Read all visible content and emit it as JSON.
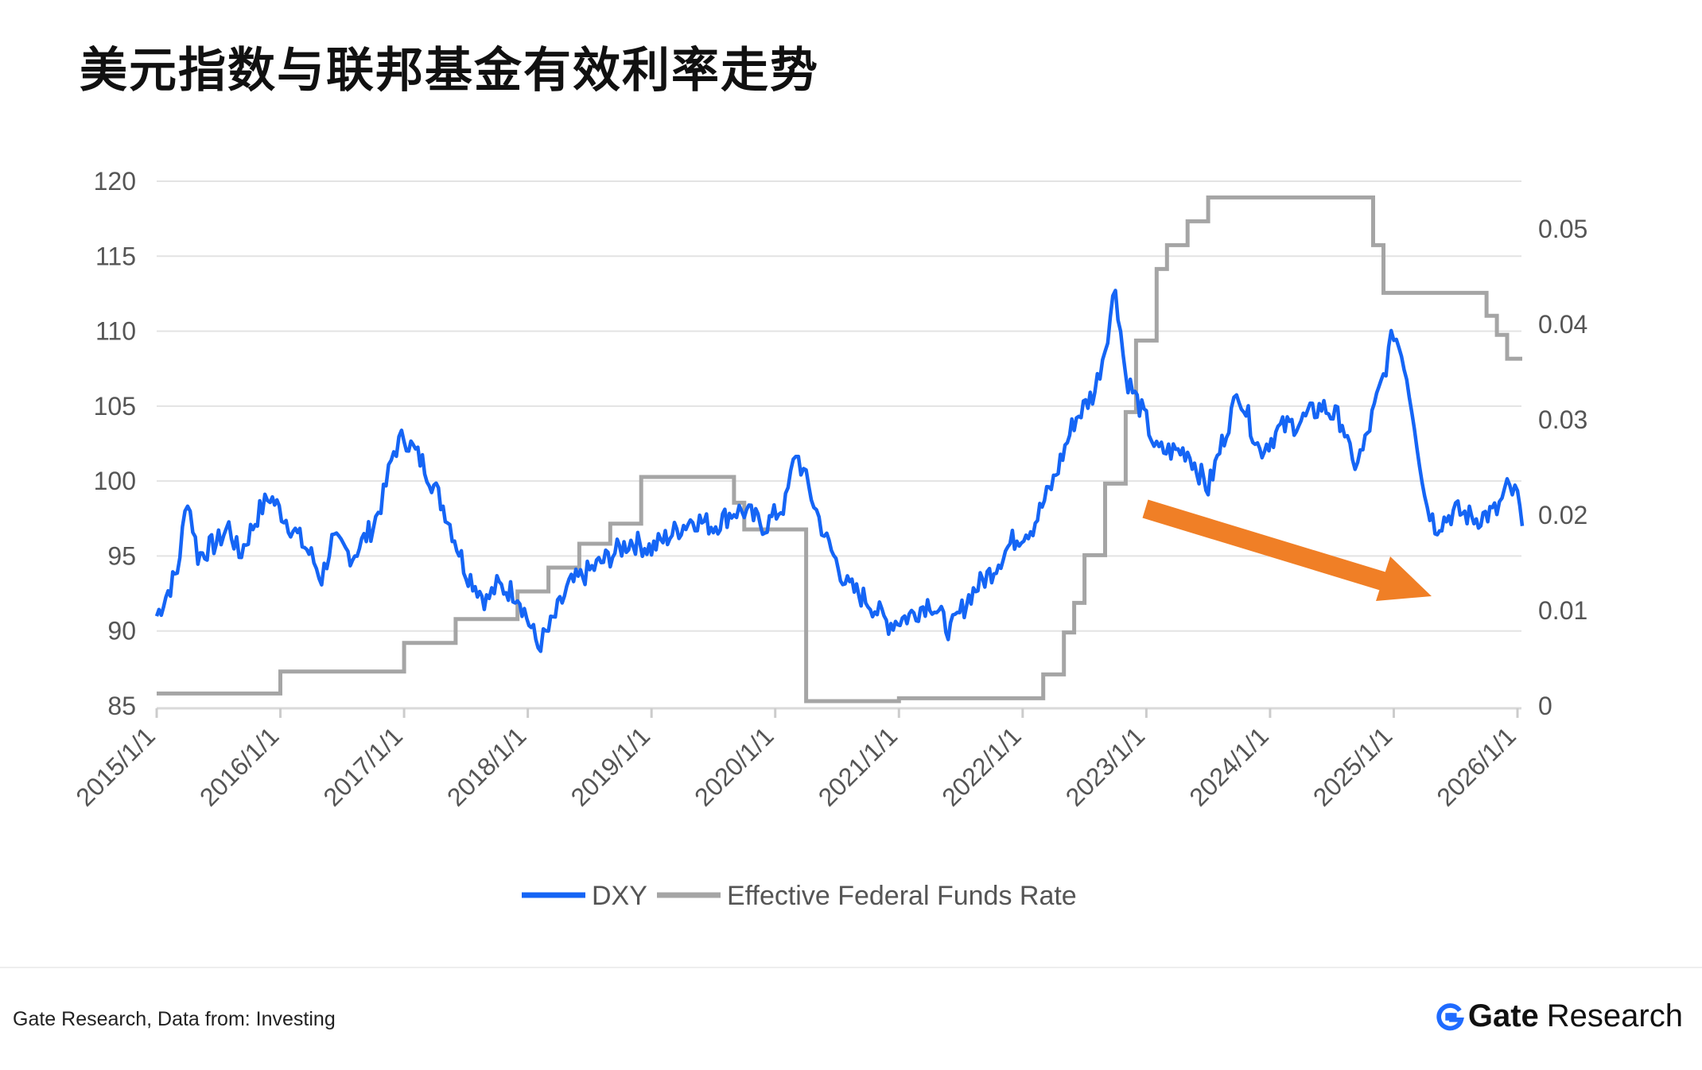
{
  "page": {
    "title": "美元指数与联邦基金有效利率走势",
    "source": "Gate Research, Data from: Investing",
    "brand_name": "Gate",
    "brand_sub": "Research"
  },
  "colors": {
    "dxy": "#1565f5",
    "fed": "#a5a5a5",
    "arrow": "#f07f26",
    "grid": "#e3e3e3",
    "axis_text": "#555555"
  },
  "chart_data": {
    "type": "line",
    "title": "美元指数与联邦基金有效利率走势",
    "xlabel": "",
    "ylabel": "",
    "x_ticks": [
      "2015/1/1",
      "2016/1/1",
      "2017/1/1",
      "2018/1/1",
      "2019/1/1",
      "2020/1/1",
      "2021/1/1",
      "2022/1/1",
      "2023/1/1",
      "2024/1/1",
      "2025/1/1",
      "2026/1/1"
    ],
    "y_left": {
      "ticks": [
        "120",
        "115",
        "110",
        "105",
        "100",
        "95",
        "90",
        "85"
      ],
      "min": 85,
      "max": 120
    },
    "y_right": {
      "ticks": [
        "0.05",
        "0.04",
        "0.03",
        "0.02",
        "0.01",
        "0"
      ],
      "min": 0,
      "max": 0.055
    },
    "grid": true,
    "legend_position": "bottom-center",
    "series": [
      {
        "name": "DXY",
        "axis": "left",
        "x": [
          "2015/1/1",
          "2015/3/1",
          "2015/4/1",
          "2015/5/1",
          "2015/7/1",
          "2015/8/1",
          "2015/9/1",
          "2015/11/1",
          "2015/12/1",
          "2016/2/1",
          "2016/4/1",
          "2016/5/1",
          "2016/6/1",
          "2016/8/1",
          "2016/10/1",
          "2016/11/1",
          "2016/12/1",
          "2017/1/1",
          "2017/3/1",
          "2017/5/1",
          "2017/7/1",
          "2017/9/1",
          "2017/10/1",
          "2017/12/1",
          "2018/2/1",
          "2018/3/1",
          "2018/5/1",
          "2018/7/1",
          "2018/9/1",
          "2018/11/1",
          "2019/1/1",
          "2019/3/1",
          "2019/5/1",
          "2019/7/1",
          "2019/9/1",
          "2019/10/1",
          "2019/12/1",
          "2020/2/1",
          "2020/3/1",
          "2020/4/1",
          "2020/5/1",
          "2020/6/1",
          "2020/8/1",
          "2020/10/1",
          "2020/12/1",
          "2021/2/1",
          "2021/4/1",
          "2021/6/1",
          "2021/8/1",
          "2021/10/1",
          "2021/12/1",
          "2022/2/1",
          "2022/4/1",
          "2022/6/1",
          "2022/8/1",
          "2022/9/1",
          "2022/10/1",
          "2022/11/1",
          "2023/1/1",
          "2023/2/1",
          "2023/5/1",
          "2023/7/1",
          "2023/9/1",
          "2023/10/1",
          "2023/12/1",
          "2024/2/1",
          "2024/4/1",
          "2024/6/1",
          "2024/8/1",
          "2024/9/1",
          "2024/10/1",
          "2024/12/1",
          "2025/1/1",
          "2025/2/1",
          "2025/3/1",
          "2025/4/1",
          "2025/5/1",
          "2025/7/1",
          "2025/9/1",
          "2025/11/1",
          "2025/12/1",
          "2026/1/1",
          "2026/1/15"
        ],
        "y": [
          91,
          94,
          99,
          95,
          96,
          97,
          95,
          98,
          99,
          97,
          95,
          93.5,
          96,
          95,
          97,
          99,
          102,
          103,
          101,
          98,
          94,
          92,
          93,
          92.5,
          89,
          90,
          93,
          94,
          95,
          96,
          95.5,
          96.5,
          97.5,
          97,
          98,
          98,
          97,
          98.5,
          102,
          100,
          98,
          96,
          93,
          92,
          90.5,
          91,
          92,
          90,
          92.5,
          94,
          96,
          97,
          100,
          104,
          106,
          109,
          113,
          107,
          104,
          102,
          102,
          99.5,
          104,
          106,
          102,
          103.5,
          104,
          105,
          104,
          101,
          102,
          107,
          110,
          108,
          104,
          99,
          97,
          98,
          97.5,
          98,
          99.5,
          99,
          97
        ]
      },
      {
        "name": "Effective Federal Funds Rate",
        "axis": "right",
        "x": [
          "2015/1/1",
          "2015/12/1",
          "2016/1/1",
          "2016/12/1",
          "2017/1/1",
          "2017/3/1",
          "2017/6/1",
          "2017/12/1",
          "2018/3/1",
          "2018/6/1",
          "2018/9/1",
          "2018/12/1",
          "2019/8/1",
          "2019/9/1",
          "2019/10/1",
          "2020/3/1",
          "2020/4/1",
          "2021/1/1",
          "2022/1/1",
          "2022/3/1",
          "2022/5/1",
          "2022/6/1",
          "2022/7/1",
          "2022/9/1",
          "2022/11/1",
          "2022/12/1",
          "2023/2/1",
          "2023/3/1",
          "2023/5/1",
          "2023/7/1",
          "2024/9/1",
          "2024/11/1",
          "2024/12/1",
          "2025/9/1",
          "2025/10/1",
          "2025/11/1",
          "2025/12/1",
          "2026/1/15"
        ],
        "y": [
          0.0013,
          0.0013,
          0.0036,
          0.0036,
          0.0066,
          0.0066,
          0.0091,
          0.012,
          0.0145,
          0.017,
          0.0191,
          0.024,
          0.024,
          0.0213,
          0.0185,
          0.0185,
          0.0005,
          0.0008,
          0.0008,
          0.0033,
          0.0077,
          0.0108,
          0.0158,
          0.0233,
          0.0308,
          0.0383,
          0.0458,
          0.0483,
          0.0508,
          0.0533,
          0.0533,
          0.0483,
          0.0433,
          0.0433,
          0.0409,
          0.0389,
          0.0364,
          0.0364
        ]
      }
    ],
    "annotations": [
      {
        "type": "arrow",
        "color": "orange",
        "direction": "down-right",
        "from": "2023/1/1",
        "to": "2025/4/1"
      }
    ]
  }
}
